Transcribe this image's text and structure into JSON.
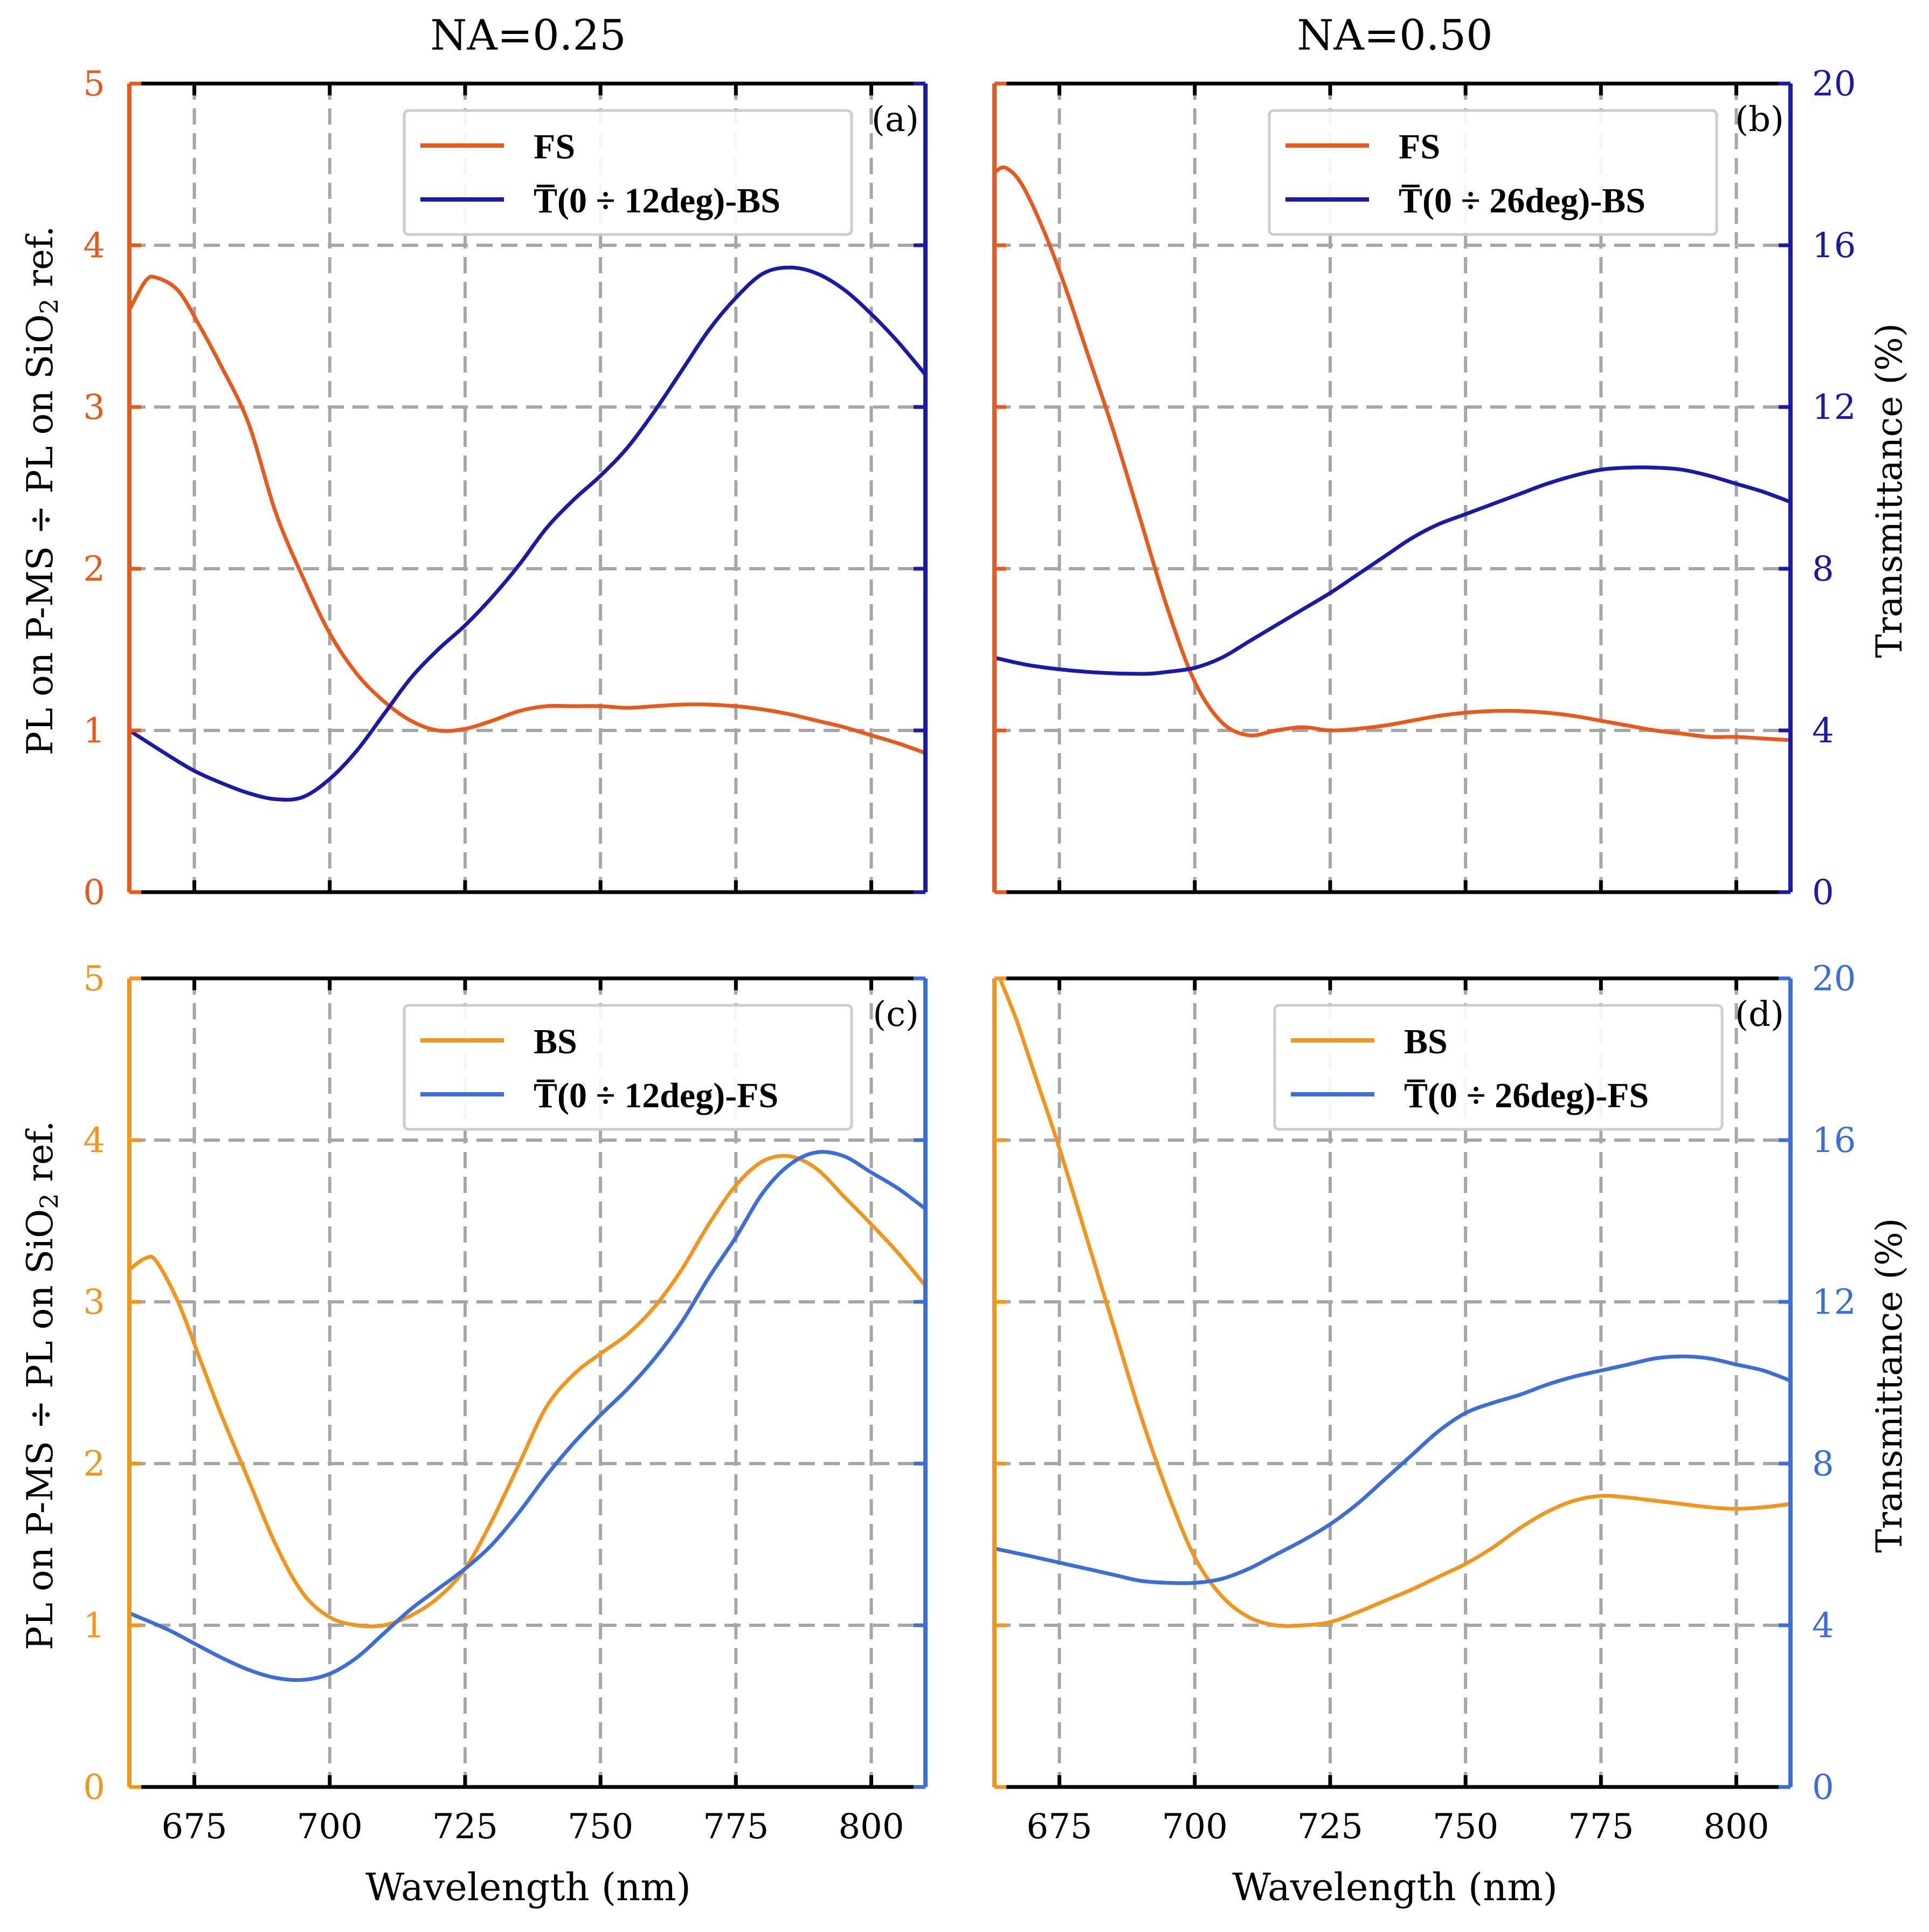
{
  "colors": {
    "fs": "#E65A1E",
    "bs_t": "#1A1AA6",
    "bs": "#F0961E",
    "fs_t": "#3C6ED6",
    "grid": "#A6A6A6",
    "axis": "#000000"
  },
  "column_titles": [
    "NA=0.25",
    "NA=0.50"
  ],
  "left_axis_label": "PL on P-MS ÷ PL on SiO",
  "left_axis_label_sub": "2",
  "left_axis_label_end": " ref.",
  "right_axis_label": "Transmittance (%)",
  "x_axis_label": "Wavelength (nm)",
  "chart_data": [
    {
      "type": "line",
      "panel_label": "(a)",
      "title": "NA=0.25",
      "xlabel": "Wavelength (nm)",
      "ylabel": "PL on P-MS ÷ PL on SiO2 ref.",
      "y2label": "Transmittance (%)",
      "xlim": [
        663,
        810
      ],
      "ylim": [
        0,
        5
      ],
      "y2lim": [
        0,
        20
      ],
      "xticks": [
        "675",
        "700",
        "725",
        "750",
        "775",
        "800"
      ],
      "yticks": [
        "0",
        "1",
        "2",
        "3",
        "4",
        "5"
      ],
      "y2ticks": [
        "0",
        "4",
        "8",
        "12",
        "16",
        "20"
      ],
      "left_color": "#E65A1E",
      "right_color": "#1A1AA6",
      "grid": true,
      "legend_position": "top-center",
      "series": [
        {
          "name": "FS",
          "axis": "left",
          "color": "#E65A1E",
          "x": [
            663,
            666,
            668,
            672,
            676,
            680,
            685,
            690,
            695,
            700,
            705,
            710,
            715,
            720,
            725,
            730,
            735,
            740,
            745,
            750,
            755,
            760,
            765,
            770,
            775,
            780,
            785,
            790,
            795,
            800,
            805,
            810
          ],
          "y": [
            3.6,
            3.78,
            3.8,
            3.72,
            3.5,
            3.25,
            2.9,
            2.35,
            1.95,
            1.6,
            1.35,
            1.18,
            1.06,
            1.0,
            1.01,
            1.06,
            1.12,
            1.15,
            1.15,
            1.15,
            1.14,
            1.15,
            1.16,
            1.16,
            1.15,
            1.13,
            1.1,
            1.06,
            1.02,
            0.97,
            0.92,
            0.86
          ]
        },
        {
          "name": "T̅(0 ÷ 12deg)-BS",
          "axis": "right",
          "color": "#1A1AA6",
          "x": [
            663,
            670,
            675,
            680,
            685,
            690,
            695,
            700,
            705,
            710,
            715,
            720,
            725,
            730,
            735,
            740,
            745,
            750,
            755,
            760,
            765,
            770,
            775,
            780,
            785,
            790,
            795,
            800,
            805,
            810
          ],
          "y": [
            4.0,
            3.4,
            3.0,
            2.7,
            2.45,
            2.3,
            2.35,
            2.8,
            3.5,
            4.4,
            5.3,
            6.0,
            6.6,
            7.3,
            8.1,
            9.0,
            9.7,
            10.3,
            11.0,
            11.9,
            12.9,
            13.9,
            14.7,
            15.3,
            15.45,
            15.3,
            14.9,
            14.3,
            13.6,
            12.8
          ]
        }
      ]
    },
    {
      "type": "line",
      "panel_label": "(b)",
      "title": "NA=0.50",
      "xlabel": "Wavelength (nm)",
      "ylabel": "PL on P-MS ÷ PL on SiO2 ref.",
      "y2label": "Transmittance (%)",
      "xlim": [
        663,
        810
      ],
      "ylim": [
        0,
        5
      ],
      "y2lim": [
        0,
        20
      ],
      "xticks": [
        "675",
        "700",
        "725",
        "750",
        "775",
        "800"
      ],
      "yticks": [
        "0",
        "1",
        "2",
        "3",
        "4",
        "5"
      ],
      "y2ticks": [
        "0",
        "4",
        "8",
        "12",
        "16",
        "20"
      ],
      "left_color": "#E65A1E",
      "right_color": "#1A1AA6",
      "grid": true,
      "legend_position": "top-center",
      "series": [
        {
          "name": "FS",
          "axis": "left",
          "color": "#E65A1E",
          "x": [
            663,
            665,
            668,
            672,
            676,
            680,
            685,
            690,
            695,
            700,
            705,
            710,
            715,
            720,
            725,
            730,
            735,
            740,
            745,
            750,
            755,
            760,
            765,
            770,
            775,
            780,
            785,
            790,
            795,
            800,
            805,
            810
          ],
          "y": [
            4.45,
            4.48,
            4.38,
            4.1,
            3.75,
            3.35,
            2.85,
            2.3,
            1.75,
            1.3,
            1.05,
            0.97,
            1.0,
            1.02,
            1.0,
            1.01,
            1.03,
            1.06,
            1.09,
            1.11,
            1.12,
            1.12,
            1.11,
            1.09,
            1.06,
            1.03,
            1.0,
            0.98,
            0.96,
            0.96,
            0.95,
            0.94
          ]
        },
        {
          "name": "T̅(0 ÷ 26deg)-BS",
          "axis": "right",
          "color": "#1A1AA6",
          "x": [
            663,
            670,
            680,
            690,
            695,
            700,
            705,
            710,
            715,
            720,
            725,
            730,
            735,
            740,
            745,
            750,
            755,
            760,
            765,
            770,
            775,
            780,
            785,
            790,
            795,
            800,
            805,
            810
          ],
          "y": [
            5.8,
            5.6,
            5.45,
            5.4,
            5.45,
            5.55,
            5.8,
            6.2,
            6.6,
            7.0,
            7.4,
            7.85,
            8.3,
            8.75,
            9.1,
            9.35,
            9.6,
            9.85,
            10.1,
            10.3,
            10.45,
            10.5,
            10.5,
            10.45,
            10.3,
            10.1,
            9.9,
            9.65
          ]
        }
      ]
    },
    {
      "type": "line",
      "panel_label": "(c)",
      "title": "",
      "xlabel": "Wavelength (nm)",
      "ylabel": "PL on P-MS ÷ PL on SiO2 ref.",
      "y2label": "Transmittance (%)",
      "xlim": [
        663,
        810
      ],
      "ylim": [
        0,
        5
      ],
      "y2lim": [
        0,
        20
      ],
      "xticks": [
        "675",
        "700",
        "725",
        "750",
        "775",
        "800"
      ],
      "yticks": [
        "0",
        "1",
        "2",
        "3",
        "4",
        "5"
      ],
      "y2ticks": [
        "0",
        "4",
        "8",
        "12",
        "16",
        "20"
      ],
      "left_color": "#F0961E",
      "right_color": "#3C6ED6",
      "grid": true,
      "legend_position": "top-center",
      "series": [
        {
          "name": "BS",
          "axis": "left",
          "color": "#F0961E",
          "x": [
            663,
            666,
            668,
            672,
            676,
            680,
            685,
            690,
            695,
            700,
            705,
            710,
            715,
            720,
            725,
            730,
            735,
            740,
            745,
            750,
            755,
            760,
            765,
            770,
            775,
            780,
            785,
            790,
            795,
            800,
            805,
            810
          ],
          "y": [
            3.2,
            3.27,
            3.25,
            3.0,
            2.65,
            2.3,
            1.9,
            1.5,
            1.2,
            1.05,
            1.0,
            1.0,
            1.06,
            1.17,
            1.35,
            1.65,
            2.0,
            2.35,
            2.55,
            2.68,
            2.8,
            2.97,
            3.2,
            3.48,
            3.72,
            3.87,
            3.9,
            3.82,
            3.65,
            3.48,
            3.3,
            3.1
          ]
        },
        {
          "name": "T̅(0 ÷ 12deg)-FS",
          "axis": "right",
          "color": "#3C6ED6",
          "x": [
            663,
            670,
            675,
            680,
            685,
            690,
            695,
            700,
            705,
            710,
            715,
            720,
            725,
            730,
            735,
            740,
            745,
            750,
            755,
            760,
            765,
            770,
            775,
            780,
            785,
            790,
            795,
            800,
            805,
            810
          ],
          "y": [
            4.3,
            3.9,
            3.55,
            3.2,
            2.9,
            2.7,
            2.65,
            2.8,
            3.2,
            3.8,
            4.4,
            4.9,
            5.4,
            6.0,
            6.8,
            7.7,
            8.5,
            9.2,
            9.85,
            10.6,
            11.5,
            12.6,
            13.6,
            14.7,
            15.4,
            15.7,
            15.6,
            15.2,
            14.8,
            14.3
          ]
        }
      ]
    },
    {
      "type": "line",
      "panel_label": "(d)",
      "title": "",
      "xlabel": "Wavelength (nm)",
      "ylabel": "PL on P-MS ÷ PL on SiO2 ref.",
      "y2label": "Transmittance (%)",
      "xlim": [
        663,
        810
      ],
      "ylim": [
        0,
        5
      ],
      "y2lim": [
        0,
        20
      ],
      "xticks": [
        "675",
        "700",
        "725",
        "750",
        "775",
        "800"
      ],
      "yticks": [
        "0",
        "1",
        "2",
        "3",
        "4",
        "5"
      ],
      "y2ticks": [
        "0",
        "4",
        "8",
        "12",
        "16",
        "20"
      ],
      "left_color": "#F0961E",
      "right_color": "#3C6ED6",
      "grid": true,
      "legend_position": "top-center",
      "series": [
        {
          "name": "BS",
          "axis": "left",
          "color": "#F0961E",
          "x": [
            664,
            667,
            670,
            675,
            680,
            685,
            690,
            695,
            700,
            705,
            710,
            715,
            720,
            725,
            730,
            735,
            740,
            745,
            750,
            755,
            760,
            765,
            770,
            775,
            780,
            785,
            790,
            795,
            800,
            805,
            810
          ],
          "y": [
            5.0,
            4.75,
            4.45,
            3.95,
            3.4,
            2.85,
            2.3,
            1.82,
            1.42,
            1.18,
            1.05,
            1.0,
            1.0,
            1.02,
            1.08,
            1.15,
            1.22,
            1.3,
            1.38,
            1.48,
            1.6,
            1.7,
            1.77,
            1.8,
            1.79,
            1.77,
            1.75,
            1.73,
            1.72,
            1.73,
            1.75
          ]
        },
        {
          "name": "T̅(0 ÷ 26deg)-FS",
          "axis": "right",
          "color": "#3C6ED6",
          "x": [
            663,
            670,
            675,
            680,
            685,
            690,
            695,
            700,
            705,
            710,
            715,
            720,
            725,
            730,
            735,
            740,
            745,
            750,
            755,
            760,
            765,
            770,
            775,
            780,
            785,
            790,
            795,
            800,
            805,
            810
          ],
          "y": [
            5.9,
            5.7,
            5.55,
            5.4,
            5.25,
            5.1,
            5.05,
            5.05,
            5.15,
            5.4,
            5.75,
            6.1,
            6.5,
            7.0,
            7.6,
            8.2,
            8.8,
            9.25,
            9.5,
            9.7,
            9.95,
            10.15,
            10.3,
            10.45,
            10.6,
            10.65,
            10.6,
            10.45,
            10.3,
            10.05
          ]
        }
      ]
    }
  ]
}
